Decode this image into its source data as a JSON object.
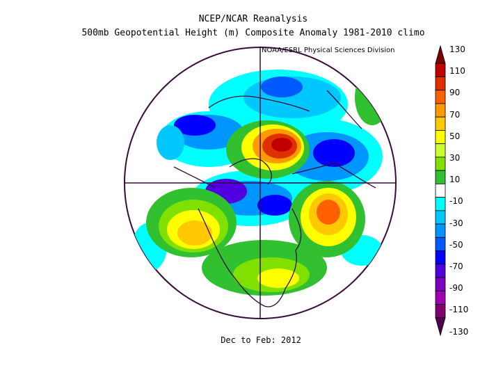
{
  "header": {
    "title1": "NCEP/NCAR Reanalysis",
    "title2": "500mb Geopotential Height (m) Composite Anomaly 1981-2010 climo",
    "credit": "NOAA/ESRL Physical Sciences Division"
  },
  "footer": {
    "period": "Dec to Feb: 2012"
  },
  "colorbar": {
    "labels": [
      "130",
      "110",
      "90",
      "70",
      "50",
      "30",
      "10",
      "-10",
      "-30",
      "-50",
      "-70",
      "-90",
      "-110",
      "-130"
    ],
    "colors": [
      "#7a0000",
      "#c00000",
      "#e03000",
      "#ff6000",
      "#ff9a00",
      "#ffc800",
      "#ffff00",
      "#c8ff30",
      "#80e000",
      "#30c030",
      "#ffffff",
      "#00ffff",
      "#00c8ff",
      "#0096ff",
      "#005aff",
      "#0000ff",
      "#5000e0",
      "#8000c0",
      "#a000b0",
      "#800070",
      "#500050"
    ],
    "levels": [
      130,
      110,
      90,
      70,
      50,
      30,
      10,
      -10,
      -30,
      -50,
      -70,
      -90,
      -110,
      -130
    ]
  }
}
